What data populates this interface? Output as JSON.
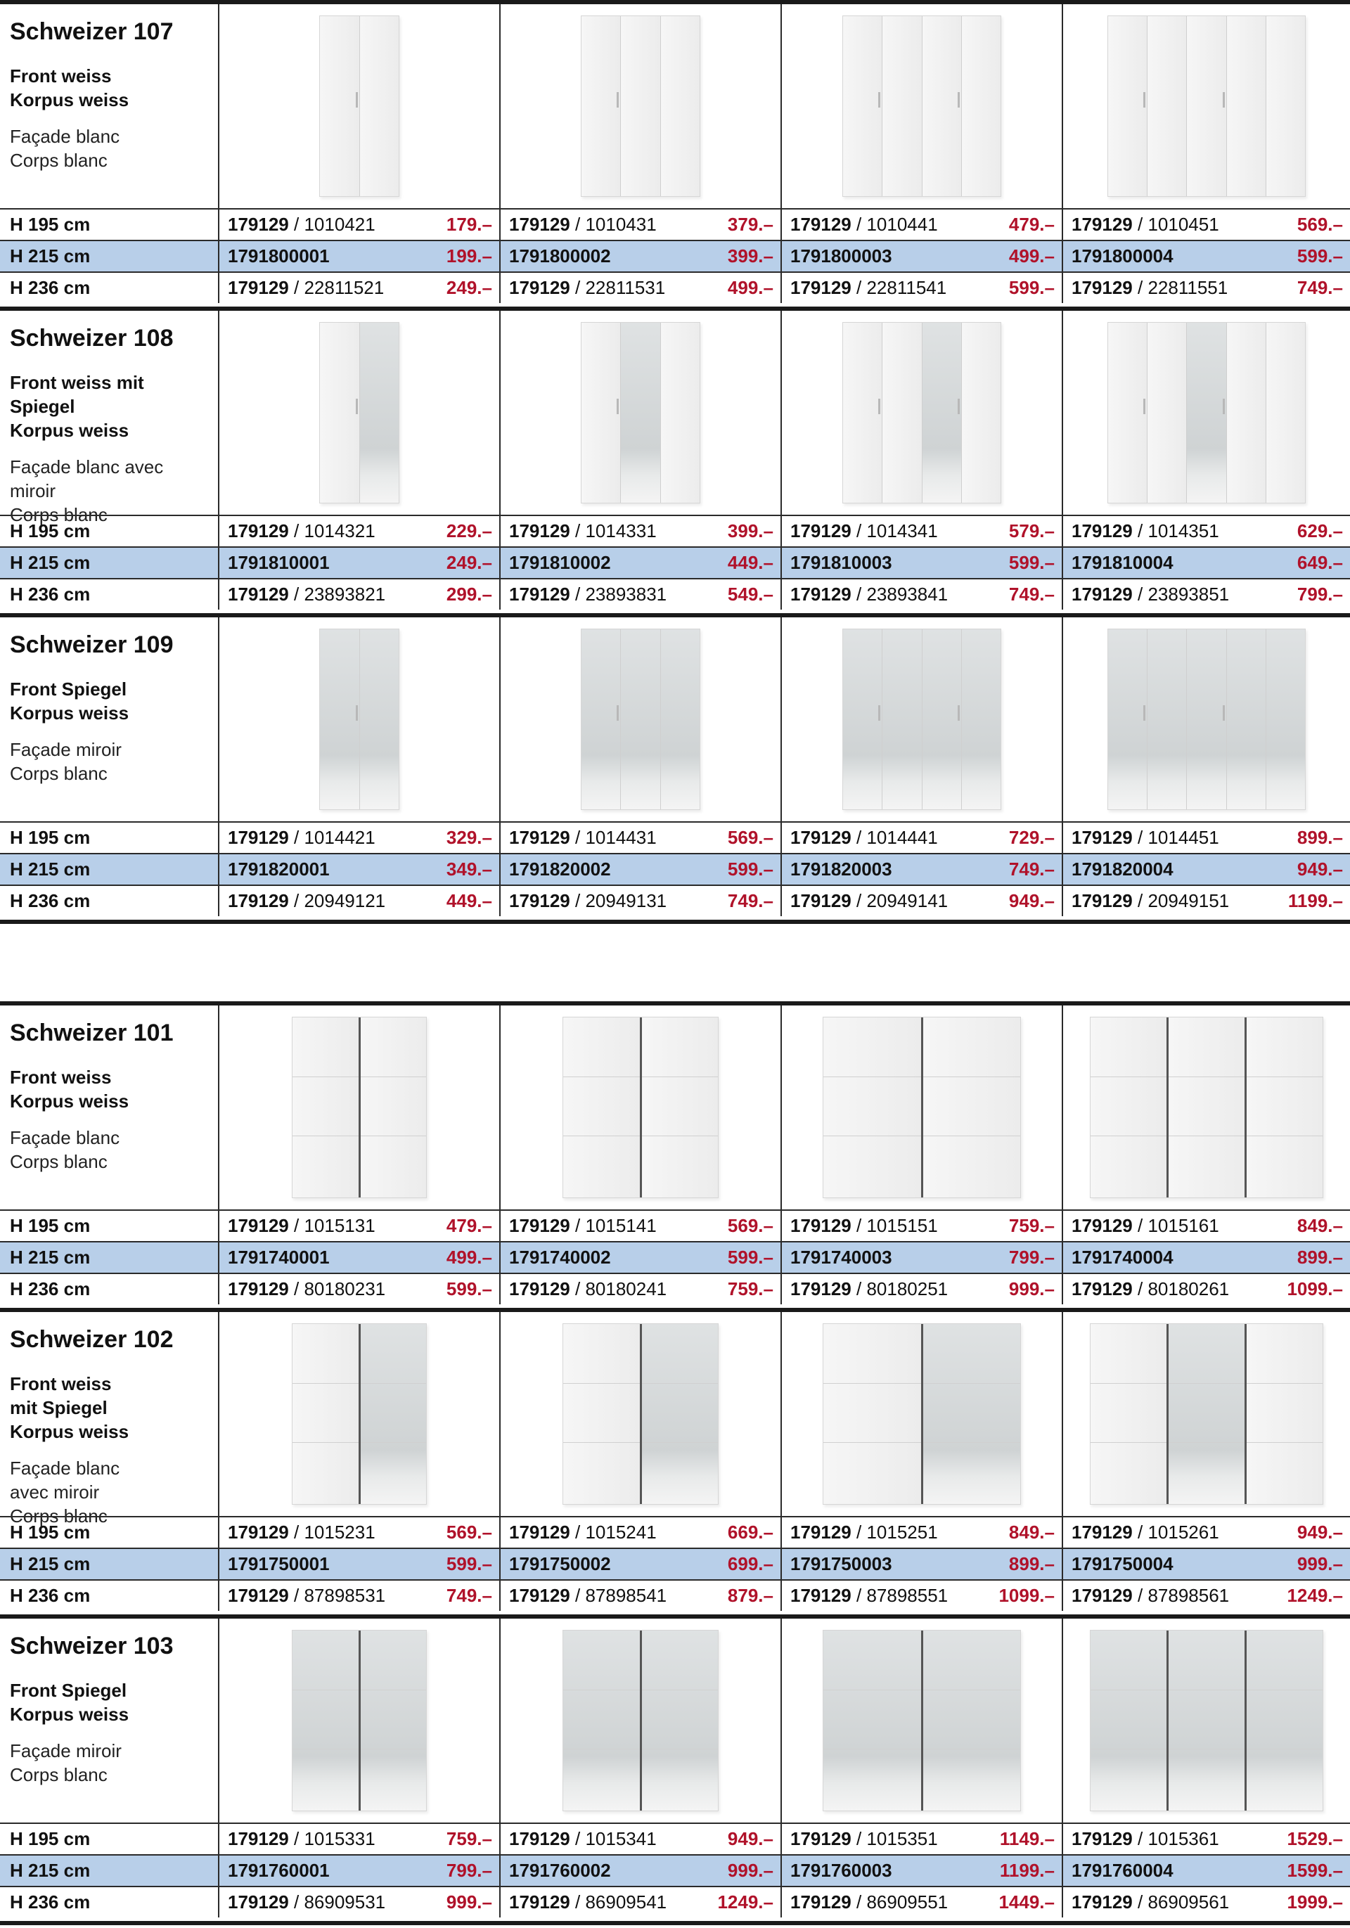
{
  "sections": [
    {
      "products": [
        {
          "title": "Schweizer 107",
          "desc_de": "Front weiss\nKorpus weiss",
          "desc_fr": "Façade blanc\nCorps blanc",
          "door_counts": [
            2,
            3,
            4,
            5
          ],
          "door_style": "hinged-white",
          "rows": [
            {
              "height": "H 195 cm",
              "items": [
                {
                  "art": "179129",
                  "sub": "/ 1010421",
                  "price": "179.–"
                },
                {
                  "art": "179129",
                  "sub": "/ 1010431",
                  "price": "379.–"
                },
                {
                  "art": "179129",
                  "sub": "/ 1010441",
                  "price": "479.–"
                },
                {
                  "art": "179129",
                  "sub": "/ 1010451",
                  "price": "569.–"
                }
              ]
            },
            {
              "height": "H 215 cm",
              "items": [
                {
                  "art": "1791800001",
                  "sub": "",
                  "price": "199.–"
                },
                {
                  "art": "1791800002",
                  "sub": "",
                  "price": "399.–"
                },
                {
                  "art": "1791800003",
                  "sub": "",
                  "price": "499.–"
                },
                {
                  "art": "1791800004",
                  "sub": "",
                  "price": "599.–"
                }
              ]
            },
            {
              "height": "H 236 cm",
              "items": [
                {
                  "art": "179129",
                  "sub": "/ 22811521",
                  "price": "249.–"
                },
                {
                  "art": "179129",
                  "sub": "/ 22811531",
                  "price": "499.–"
                },
                {
                  "art": "179129",
                  "sub": "/ 22811541",
                  "price": "599.–"
                },
                {
                  "art": "179129",
                  "sub": "/ 22811551",
                  "price": "749.–"
                }
              ]
            }
          ]
        },
        {
          "title": "Schweizer 108",
          "desc_de": "Front weiss mit\nSpiegel\nKorpus weiss",
          "desc_fr": "Façade blanc avec\nmiroir\nCorps blanc",
          "door_counts": [
            2,
            3,
            4,
            5
          ],
          "door_style": "hinged-partmirror",
          "rows": [
            {
              "height": "H 195 cm",
              "items": [
                {
                  "art": "179129",
                  "sub": "/ 1014321",
                  "price": "229.–"
                },
                {
                  "art": "179129",
                  "sub": "/ 1014331",
                  "price": "399.–"
                },
                {
                  "art": "179129",
                  "sub": "/ 1014341",
                  "price": "579.–"
                },
                {
                  "art": "179129",
                  "sub": "/ 1014351",
                  "price": "629.–"
                }
              ]
            },
            {
              "height": "H 215 cm",
              "items": [
                {
                  "art": "1791810001",
                  "sub": "",
                  "price": "249.–"
                },
                {
                  "art": "1791810002",
                  "sub": "",
                  "price": "449.–"
                },
                {
                  "art": "1791810003",
                  "sub": "",
                  "price": "599.–"
                },
                {
                  "art": "1791810004",
                  "sub": "",
                  "price": "649.–"
                }
              ]
            },
            {
              "height": "H 236 cm",
              "items": [
                {
                  "art": "179129",
                  "sub": "/ 23893821",
                  "price": "299.–"
                },
                {
                  "art": "179129",
                  "sub": "/ 23893831",
                  "price": "549.–"
                },
                {
                  "art": "179129",
                  "sub": "/ 23893841",
                  "price": "749.–"
                },
                {
                  "art": "179129",
                  "sub": "/ 23893851",
                  "price": "799.–"
                }
              ]
            }
          ]
        },
        {
          "title": "Schweizer 109",
          "desc_de": "Front Spiegel\nKorpus weiss",
          "desc_fr": "Façade miroir\nCorps blanc",
          "door_counts": [
            2,
            3,
            4,
            5
          ],
          "door_style": "hinged-mirror",
          "rows": [
            {
              "height": "H 195 cm",
              "items": [
                {
                  "art": "179129",
                  "sub": "/ 1014421",
                  "price": "329.–"
                },
                {
                  "art": "179129",
                  "sub": "/ 1014431",
                  "price": "569.–"
                },
                {
                  "art": "179129",
                  "sub": "/ 1014441",
                  "price": "729.–"
                },
                {
                  "art": "179129",
                  "sub": "/ 1014451",
                  "price": "899.–"
                }
              ]
            },
            {
              "height": "H 215 cm",
              "items": [
                {
                  "art": "1791820001",
                  "sub": "",
                  "price": "349.–"
                },
                {
                  "art": "1791820002",
                  "sub": "",
                  "price": "599.–"
                },
                {
                  "art": "1791820003",
                  "sub": "",
                  "price": "749.–"
                },
                {
                  "art": "1791820004",
                  "sub": "",
                  "price": "949.–"
                }
              ]
            },
            {
              "height": "H 236 cm",
              "items": [
                {
                  "art": "179129",
                  "sub": "/ 20949121",
                  "price": "449.–"
                },
                {
                  "art": "179129",
                  "sub": "/ 20949131",
                  "price": "749.–"
                },
                {
                  "art": "179129",
                  "sub": "/ 20949141",
                  "price": "949.–"
                },
                {
                  "art": "179129",
                  "sub": "/ 20949151",
                  "price": "1199.–"
                }
              ]
            }
          ]
        }
      ]
    },
    {
      "products": [
        {
          "title": "Schweizer 101",
          "desc_de": "Front weiss\nKorpus weiss",
          "desc_fr": "Façade blanc\nCorps blanc",
          "door_counts": [
            2,
            2,
            2,
            3
          ],
          "door_style": "sliding-white",
          "rows": [
            {
              "height": "H 195 cm",
              "items": [
                {
                  "art": "179129",
                  "sub": "/ 1015131",
                  "price": "479.–"
                },
                {
                  "art": "179129",
                  "sub": "/ 1015141",
                  "price": "569.–"
                },
                {
                  "art": "179129",
                  "sub": "/ 1015151",
                  "price": "759.–"
                },
                {
                  "art": "179129",
                  "sub": "/ 1015161",
                  "price": "849.–"
                }
              ]
            },
            {
              "height": "H 215 cm",
              "items": [
                {
                  "art": "1791740001",
                  "sub": "",
                  "price": "499.–"
                },
                {
                  "art": "1791740002",
                  "sub": "",
                  "price": "599.–"
                },
                {
                  "art": "1791740003",
                  "sub": "",
                  "price": "799.–"
                },
                {
                  "art": "1791740004",
                  "sub": "",
                  "price": "899.–"
                }
              ]
            },
            {
              "height": "H 236 cm",
              "items": [
                {
                  "art": "179129",
                  "sub": "/ 80180231",
                  "price": "599.–"
                },
                {
                  "art": "179129",
                  "sub": "/ 80180241",
                  "price": "759.–"
                },
                {
                  "art": "179129",
                  "sub": "/ 80180251",
                  "price": "999.–"
                },
                {
                  "art": "179129",
                  "sub": "/ 80180261",
                  "price": "1099.–"
                }
              ]
            }
          ]
        },
        {
          "title": "Schweizer 102",
          "desc_de": "Front weiss\nmit Spiegel\nKorpus weiss",
          "desc_fr": "Façade blanc\navec miroir\nCorps blanc",
          "door_counts": [
            2,
            2,
            2,
            3
          ],
          "door_style": "sliding-partmirror",
          "rows": [
            {
              "height": "H 195 cm",
              "items": [
                {
                  "art": "179129",
                  "sub": "/ 1015231",
                  "price": "569.–"
                },
                {
                  "art": "179129",
                  "sub": "/ 1015241",
                  "price": "669.–"
                },
                {
                  "art": "179129",
                  "sub": "/ 1015251",
                  "price": "849.–"
                },
                {
                  "art": "179129",
                  "sub": "/ 1015261",
                  "price": "949.–"
                }
              ]
            },
            {
              "height": "H 215 cm",
              "items": [
                {
                  "art": "1791750001",
                  "sub": "",
                  "price": "599.–"
                },
                {
                  "art": "1791750002",
                  "sub": "",
                  "price": "699.–"
                },
                {
                  "art": "1791750003",
                  "sub": "",
                  "price": "899.–"
                },
                {
                  "art": "1791750004",
                  "sub": "",
                  "price": "999.–"
                }
              ]
            },
            {
              "height": "H 236 cm",
              "items": [
                {
                  "art": "179129",
                  "sub": "/ 87898531",
                  "price": "749.–"
                },
                {
                  "art": "179129",
                  "sub": "/ 87898541",
                  "price": "879.–"
                },
                {
                  "art": "179129",
                  "sub": "/ 87898551",
                  "price": "1099.–"
                },
                {
                  "art": "179129",
                  "sub": "/ 87898561",
                  "price": "1249.–"
                }
              ]
            }
          ]
        },
        {
          "title": "Schweizer 103",
          "desc_de": "Front Spiegel\nKorpus weiss",
          "desc_fr": "Façade miroir\nCorps blanc",
          "door_counts": [
            2,
            2,
            2,
            3
          ],
          "door_style": "sliding-mirror",
          "rows": [
            {
              "height": "H 195 cm",
              "items": [
                {
                  "art": "179129",
                  "sub": "/ 1015331",
                  "price": "759.–"
                },
                {
                  "art": "179129",
                  "sub": "/ 1015341",
                  "price": "949.–"
                },
                {
                  "art": "179129",
                  "sub": "/ 1015351",
                  "price": "1149.–"
                },
                {
                  "art": "179129",
                  "sub": "/ 1015361",
                  "price": "1529.–"
                }
              ]
            },
            {
              "height": "H 215 cm",
              "items": [
                {
                  "art": "1791760001",
                  "sub": "",
                  "price": "799.–"
                },
                {
                  "art": "1791760002",
                  "sub": "",
                  "price": "999.–"
                },
                {
                  "art": "1791760003",
                  "sub": "",
                  "price": "1199.–"
                },
                {
                  "art": "1791760004",
                  "sub": "",
                  "price": "1599.–"
                }
              ]
            },
            {
              "height": "H 236 cm",
              "items": [
                {
                  "art": "179129",
                  "sub": "/ 86909531",
                  "price": "999.–"
                },
                {
                  "art": "179129",
                  "sub": "/ 86909541",
                  "price": "1249.–"
                },
                {
                  "art": "179129",
                  "sub": "/ 86909551",
                  "price": "1449.–"
                },
                {
                  "art": "179129",
                  "sub": "/ 86909561",
                  "price": "1999.–"
                }
              ]
            }
          ]
        }
      ]
    }
  ],
  "colors": {
    "price_red": "#b0122a",
    "highlight_row": "#b8cfe9",
    "rule": "#1a1a1a"
  }
}
